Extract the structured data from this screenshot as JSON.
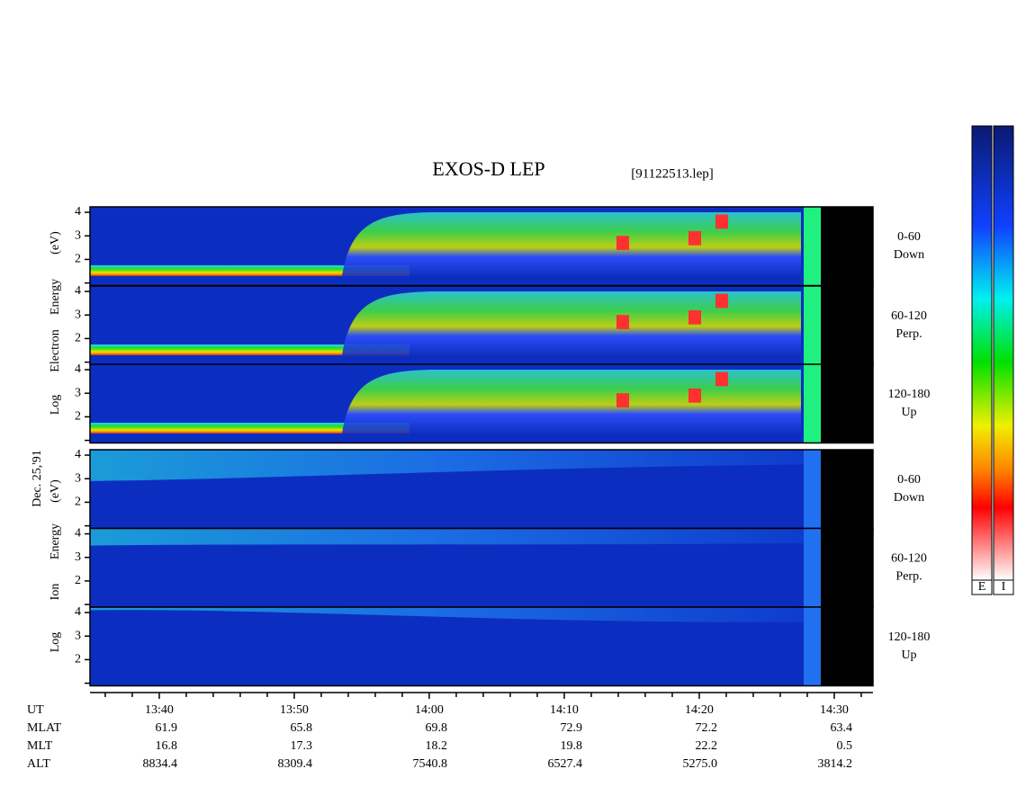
{
  "chart_data": {
    "type": "spectrogram",
    "title": "EXOS-D LEP",
    "file": "[91122513.lep]",
    "date": "Dec. 25,'91",
    "xlim": [
      814.87,
      872.87
    ],
    "xticks": [
      {
        "value": 820,
        "label": "13:40"
      },
      {
        "value": 830,
        "label": "13:50"
      },
      {
        "value": 840,
        "label": "14:00"
      },
      {
        "value": 850,
        "label": "14:10"
      },
      {
        "value": 860,
        "label": "14:20"
      },
      {
        "value": 870,
        "label": "14:30"
      }
    ],
    "xminor_ticks": [
      816,
      818,
      822,
      824,
      826,
      828,
      832,
      834,
      836,
      838,
      842,
      844,
      846,
      848,
      852,
      854,
      856,
      858,
      862,
      864,
      866,
      868,
      872
    ],
    "ylim": [
      0.89,
      4.23
    ],
    "yticks": [
      2,
      3,
      4
    ],
    "yminor_ticks": [
      1
    ],
    "groups": [
      {
        "species": "Electron",
        "axis_label": [
          "Log",
          "Electron",
          "Energy",
          "(eV)"
        ],
        "panels": [
          {
            "angle": "0-60",
            "direction": "Down"
          },
          {
            "angle": "60-120",
            "direction": "Perp."
          },
          {
            "angle": "120-180",
            "direction": "Up"
          }
        ]
      },
      {
        "species": "Ion",
        "axis_label": [
          "Log",
          "Ion",
          "Energy",
          "(eV)"
        ],
        "panels": [
          {
            "angle": "0-60",
            "direction": "Down"
          },
          {
            "angle": "60-120",
            "direction": "Perp."
          },
          {
            "angle": "120-180",
            "direction": "Up"
          }
        ]
      }
    ],
    "ephemeris": [
      {
        "label": "UT"
      },
      {
        "label": "MLAT",
        "values": [
          "61.9",
          "65.8",
          "69.8",
          "72.9",
          "72.2",
          "63.4"
        ]
      },
      {
        "label": "MLT",
        "values": [
          "16.8",
          "17.3",
          "18.2",
          "19.8",
          "22.2",
          "0.5"
        ]
      },
      {
        "label": "ALT",
        "values": [
          "8834.4",
          "8309.4",
          "7540.8",
          "6527.4",
          "5275.0",
          "3814.2"
        ]
      }
    ],
    "colorbar_labels": [
      "E",
      "I"
    ]
  }
}
